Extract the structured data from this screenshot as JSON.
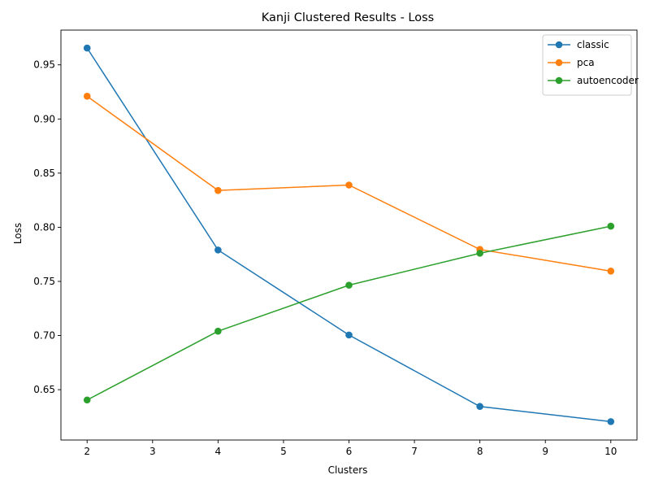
{
  "chart_data": {
    "type": "line",
    "title": "Kanji Clustered Results - Loss",
    "xlabel": "Clusters",
    "ylabel": "Loss",
    "x": [
      2,
      4,
      6,
      8,
      10
    ],
    "xlim": [
      1.6,
      10.4
    ],
    "ylim": [
      0.6035,
      0.9821
    ],
    "xticks": [
      "2",
      "3",
      "4",
      "5",
      "6",
      "7",
      "8",
      "9",
      "10"
    ],
    "yticks": [
      "0.65",
      "0.70",
      "0.75",
      "0.80",
      "0.85",
      "0.90",
      "0.95"
    ],
    "grid": false,
    "legend_position": "top-right",
    "marker": "circle",
    "series": [
      {
        "name": "classic",
        "color": "#1f77b4",
        "values": [
          0.9655,
          0.779,
          0.7005,
          0.6345,
          0.6205
        ]
      },
      {
        "name": "pca",
        "color": "#ff7f0e",
        "values": [
          0.921,
          0.834,
          0.839,
          0.7795,
          0.7595
        ]
      },
      {
        "name": "autoencoder",
        "color": "#2ca02c",
        "values": [
          0.6405,
          0.704,
          0.7465,
          0.776,
          0.801
        ]
      }
    ]
  }
}
